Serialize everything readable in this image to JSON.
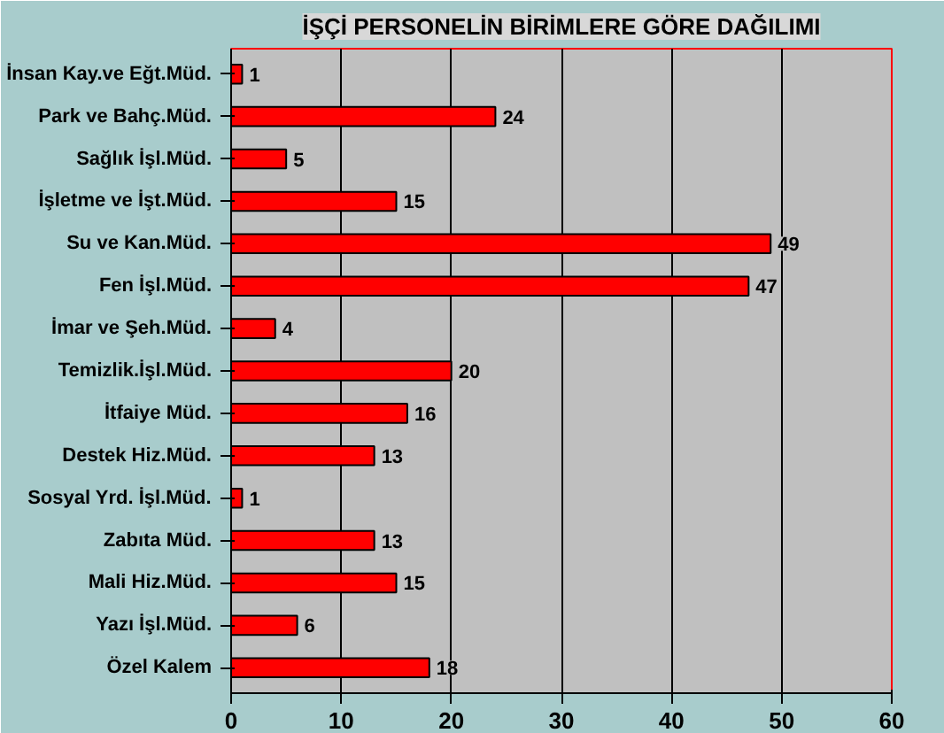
{
  "chart_data": {
    "type": "bar",
    "orientation": "horizontal",
    "title": "İŞÇİ PERSONELİN BİRİMLERE GÖRE DAĞILIMI",
    "categories": [
      "İnsan Kay.ve Eğt.Müd.",
      "Park ve Bahç.Müd.",
      "Sağlık İşl.Müd.",
      "İşletme ve İşt.Müd.",
      "Su ve Kan.Müd.",
      "Fen İşl.Müd.",
      "İmar ve Şeh.Müd.",
      "Temizlik.İşl.Müd.",
      "İtfaiye Müd.",
      "Destek Hiz.Müd.",
      "Sosyal Yrd. İşl.Müd.",
      "Zabıta Müd.",
      "Mali Hiz.Müd.",
      "Yazı İşl.Müd.",
      "Özel Kalem"
    ],
    "values": [
      1,
      24,
      5,
      15,
      49,
      47,
      4,
      20,
      16,
      13,
      1,
      13,
      15,
      6,
      18
    ],
    "color": "#ff0000",
    "xlim": [
      0,
      60
    ],
    "xticks": [
      0,
      10,
      20,
      30,
      40,
      50,
      60
    ],
    "grid": "x",
    "data_labels": true
  }
}
